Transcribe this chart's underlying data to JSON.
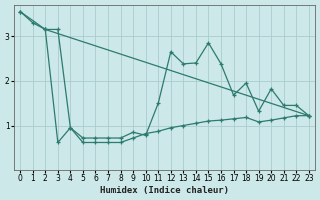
{
  "xlabel": "Humidex (Indice chaleur)",
  "bg_color": "#cce8e8",
  "grid_color": "#aacccc",
  "line_color": "#2d7a6e",
  "xlim": [
    -0.5,
    23.5
  ],
  "ylim": [
    0.0,
    3.7
  ],
  "yticks": [
    1,
    2,
    3
  ],
  "xticks": [
    0,
    1,
    2,
    3,
    4,
    5,
    6,
    7,
    8,
    9,
    10,
    11,
    12,
    13,
    14,
    15,
    16,
    17,
    18,
    19,
    20,
    21,
    22,
    23
  ],
  "series1_x": [
    0,
    1,
    2,
    3,
    4,
    5,
    6,
    7,
    8,
    9,
    10,
    11,
    12,
    13,
    14,
    15,
    16,
    17,
    18,
    19,
    20,
    21,
    22,
    23
  ],
  "series1_y": [
    3.55,
    3.3,
    3.15,
    3.15,
    0.95,
    0.72,
    0.72,
    0.72,
    0.72,
    0.85,
    0.78,
    1.5,
    2.65,
    2.38,
    2.4,
    2.85,
    2.38,
    1.68,
    1.95,
    1.32,
    1.82,
    1.45,
    1.45,
    1.22
  ],
  "series2_x": [
    0,
    2,
    23
  ],
  "series2_y": [
    3.55,
    3.15,
    1.22
  ],
  "series3_x": [
    2,
    3,
    4,
    5,
    6,
    7,
    8,
    9,
    10,
    11,
    12,
    13,
    14,
    15,
    16,
    17,
    18,
    19,
    20,
    21,
    22,
    23
  ],
  "series3_y": [
    3.15,
    0.62,
    0.95,
    0.62,
    0.62,
    0.62,
    0.62,
    0.72,
    0.82,
    0.87,
    0.95,
    1.0,
    1.05,
    1.1,
    1.12,
    1.15,
    1.18,
    1.08,
    1.12,
    1.17,
    1.22,
    1.22
  ]
}
